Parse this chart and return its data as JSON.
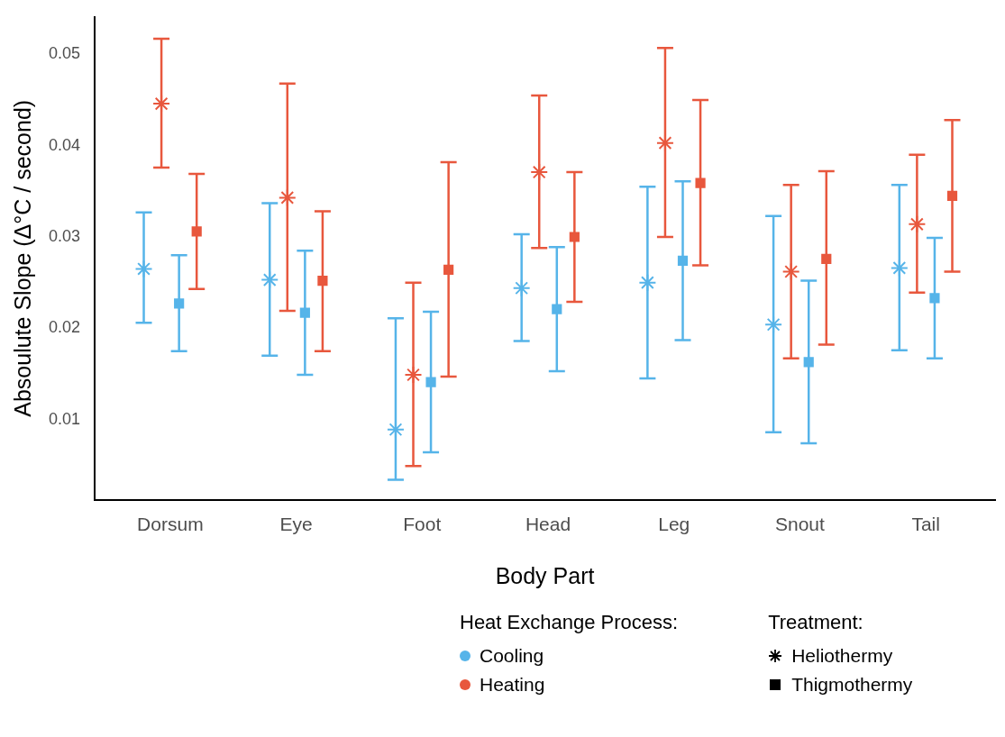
{
  "chart_data": {
    "type": "scatter",
    "xlabel": "Body Part",
    "ylabel": "Absoulute Slope (Δ°C / second)",
    "categories": [
      "Dorsum",
      "Eye",
      "Foot",
      "Head",
      "Leg",
      "Snout",
      "Tail"
    ],
    "ylim": [
      0.0012,
      0.0541
    ],
    "yticks": [
      0.01,
      0.02,
      0.03,
      0.04,
      0.05
    ],
    "grid": false,
    "legend": "bottom",
    "legend_title": "Heat Exchange Process:",
    "annotations": [
      "Treatment:",
      "Heliothermy",
      "Thigmothermy"
    ],
    "series": [
      {
        "name": "Cooling",
        "color": "#56b4e9",
        "marker": "cross",
        "values": [
          0.0265,
          0.0253,
          0.0089,
          0.0244,
          0.025,
          0.0204,
          0.0266
        ],
        "errors": [
          [
            0.0206,
            0.0327
          ],
          [
            0.017,
            0.0337
          ],
          [
            0.0034,
            0.0211
          ],
          [
            0.0186,
            0.0303
          ],
          [
            0.0145,
            0.0355
          ],
          [
            0.0086,
            0.0323
          ],
          [
            0.0176,
            0.0357
          ]
        ]
      },
      {
        "name": "Heating",
        "color": "#e8573d",
        "marker": "cross",
        "values": [
          0.0446,
          0.0343,
          0.0149,
          0.0371,
          0.0403,
          0.0262,
          0.0314
        ],
        "errors": [
          [
            0.0376,
            0.0517
          ],
          [
            0.0219,
            0.0468
          ],
          [
            0.0049,
            0.025
          ],
          [
            0.0288,
            0.0455
          ],
          [
            0.03,
            0.0507
          ],
          [
            0.0167,
            0.0357
          ],
          [
            0.0239,
            0.039
          ]
        ]
      },
      {
        "color": "#56b4e9",
        "marker": "square",
        "values": [
          0.0227,
          0.0217,
          0.0141,
          0.0221,
          0.0274,
          0.0163,
          0.0233
        ],
        "errors": [
          [
            0.0175,
            0.028
          ],
          [
            0.0149,
            0.0285
          ],
          [
            0.0064,
            0.0218
          ],
          [
            0.0153,
            0.0289
          ],
          [
            0.0187,
            0.0361
          ],
          [
            0.0074,
            0.0252
          ],
          [
            0.0167,
            0.0299
          ]
        ]
      },
      {
        "color": "#e8573d",
        "marker": "square",
        "values": [
          0.0306,
          0.0252,
          0.0264,
          0.03,
          0.0359,
          0.0276,
          0.0345
        ],
        "errors": [
          [
            0.0243,
            0.0369
          ],
          [
            0.0175,
            0.0328
          ],
          [
            0.0147,
            0.0382
          ],
          [
            0.0229,
            0.0371
          ],
          [
            0.0269,
            0.045
          ],
          [
            0.0182,
            0.0372
          ],
          [
            0.0262,
            0.0428
          ]
        ]
      }
    ]
  }
}
